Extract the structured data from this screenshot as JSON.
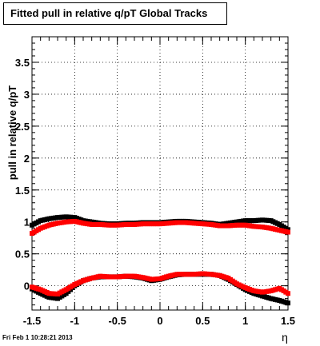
{
  "chart_data": {
    "type": "scatter",
    "title": "Fitted pull in relative q/pT  Global Tracks",
    "xlabel": "η",
    "ylabel": "pull in relative q/pT",
    "xlim": [
      -1.5,
      1.5
    ],
    "ylim": [
      -0.38,
      3.9
    ],
    "grid": true,
    "x_ticks": [
      "-1.5",
      "-1",
      "-0.5",
      "0",
      "0.5",
      "1",
      "1.5"
    ],
    "x_tick_values": [
      -1.5,
      -1,
      -0.5,
      0,
      0.5,
      1,
      1.5
    ],
    "y_ticks": [
      "0",
      "0.5",
      "1",
      "1.5",
      "2",
      "2.5",
      "3",
      "3.5"
    ],
    "y_tick_values": [
      0,
      0.5,
      1,
      1.5,
      2,
      2.5,
      3,
      3.5
    ],
    "series": [
      {
        "color": "#000000",
        "x": [
          -1.5,
          -1.4,
          -1.3,
          -1.2,
          -1.1,
          -1.0,
          -0.9,
          -0.8,
          -0.7,
          -0.6,
          -0.5,
          -0.4,
          -0.3,
          -0.2,
          -0.1,
          0.0,
          0.1,
          0.2,
          0.3,
          0.4,
          0.5,
          0.6,
          0.7,
          0.8,
          0.9,
          1.0,
          1.1,
          1.2,
          1.3,
          1.4,
          1.5
        ],
        "y": [
          0.95,
          1.02,
          1.05,
          1.07,
          1.08,
          1.07,
          1.02,
          1.0,
          0.98,
          0.97,
          0.97,
          0.98,
          0.98,
          0.99,
          0.99,
          0.99,
          1.0,
          1.01,
          1.01,
          1.0,
          0.99,
          0.98,
          0.96,
          0.98,
          1.0,
          1.02,
          1.02,
          1.03,
          1.02,
          0.96,
          0.88
        ]
      },
      {
        "color": "#ff0000",
        "x": [
          -1.5,
          -1.4,
          -1.3,
          -1.2,
          -1.1,
          -1.0,
          -0.9,
          -0.8,
          -0.7,
          -0.6,
          -0.5,
          -0.4,
          -0.3,
          -0.2,
          -0.1,
          0.0,
          0.1,
          0.2,
          0.3,
          0.4,
          0.5,
          0.6,
          0.7,
          0.8,
          0.9,
          1.0,
          1.1,
          1.2,
          1.3,
          1.4,
          1.5
        ],
        "y": [
          0.82,
          0.9,
          0.95,
          0.98,
          1.0,
          1.01,
          0.98,
          0.96,
          0.96,
          0.95,
          0.95,
          0.96,
          0.96,
          0.97,
          0.97,
          0.97,
          0.98,
          0.99,
          0.99,
          0.98,
          0.97,
          0.96,
          0.94,
          0.94,
          0.95,
          0.95,
          0.93,
          0.92,
          0.9,
          0.87,
          0.84
        ]
      },
      {
        "color": "#000000",
        "x": [
          -1.5,
          -1.4,
          -1.3,
          -1.2,
          -1.1,
          -1.0,
          -0.9,
          -0.8,
          -0.7,
          -0.6,
          -0.5,
          -0.4,
          -0.3,
          -0.2,
          -0.1,
          0.0,
          0.1,
          0.2,
          0.3,
          0.4,
          0.5,
          0.6,
          0.7,
          0.8,
          0.9,
          1.0,
          1.1,
          1.2,
          1.3,
          1.4,
          1.5
        ],
        "y": [
          -0.05,
          -0.12,
          -0.18,
          -0.2,
          -0.12,
          0.0,
          0.08,
          0.12,
          0.14,
          0.14,
          0.14,
          0.15,
          0.14,
          0.12,
          0.08,
          0.1,
          0.14,
          0.17,
          0.18,
          0.18,
          0.18,
          0.18,
          0.16,
          0.1,
          0.02,
          -0.06,
          -0.12,
          -0.16,
          -0.2,
          -0.23,
          -0.27
        ]
      },
      {
        "color": "#ff0000",
        "x": [
          -1.5,
          -1.4,
          -1.3,
          -1.2,
          -1.1,
          -1.0,
          -0.9,
          -0.8,
          -0.7,
          -0.6,
          -0.5,
          -0.4,
          -0.3,
          -0.2,
          -0.1,
          0.0,
          0.1,
          0.2,
          0.3,
          0.4,
          0.5,
          0.6,
          0.7,
          0.8,
          0.9,
          1.0,
          1.1,
          1.2,
          1.3,
          1.4,
          1.5
        ],
        "y": [
          -0.02,
          -0.06,
          -0.12,
          -0.13,
          -0.06,
          0.02,
          0.08,
          0.12,
          0.15,
          0.14,
          0.14,
          0.15,
          0.15,
          0.13,
          0.1,
          0.11,
          0.15,
          0.18,
          0.18,
          0.18,
          0.19,
          0.18,
          0.16,
          0.12,
          0.03,
          -0.03,
          -0.08,
          -0.1,
          -0.08,
          -0.04,
          -0.12
        ]
      }
    ]
  },
  "footer": {
    "date": "Fri Feb  1 10:28:21 2013"
  }
}
